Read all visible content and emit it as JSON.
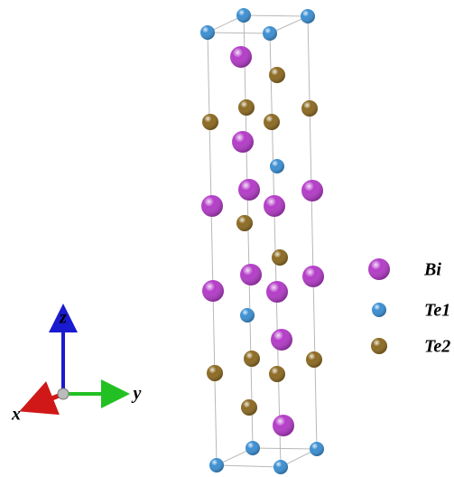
{
  "axes": {
    "z": "z",
    "y": "y",
    "x": "x"
  },
  "legend": [
    {
      "label": "Bi",
      "color": "#b43cc8"
    },
    {
      "label": "Te1",
      "color": "#3c8fd2"
    },
    {
      "label": "Te2",
      "color": "#8c6a22"
    }
  ]
}
